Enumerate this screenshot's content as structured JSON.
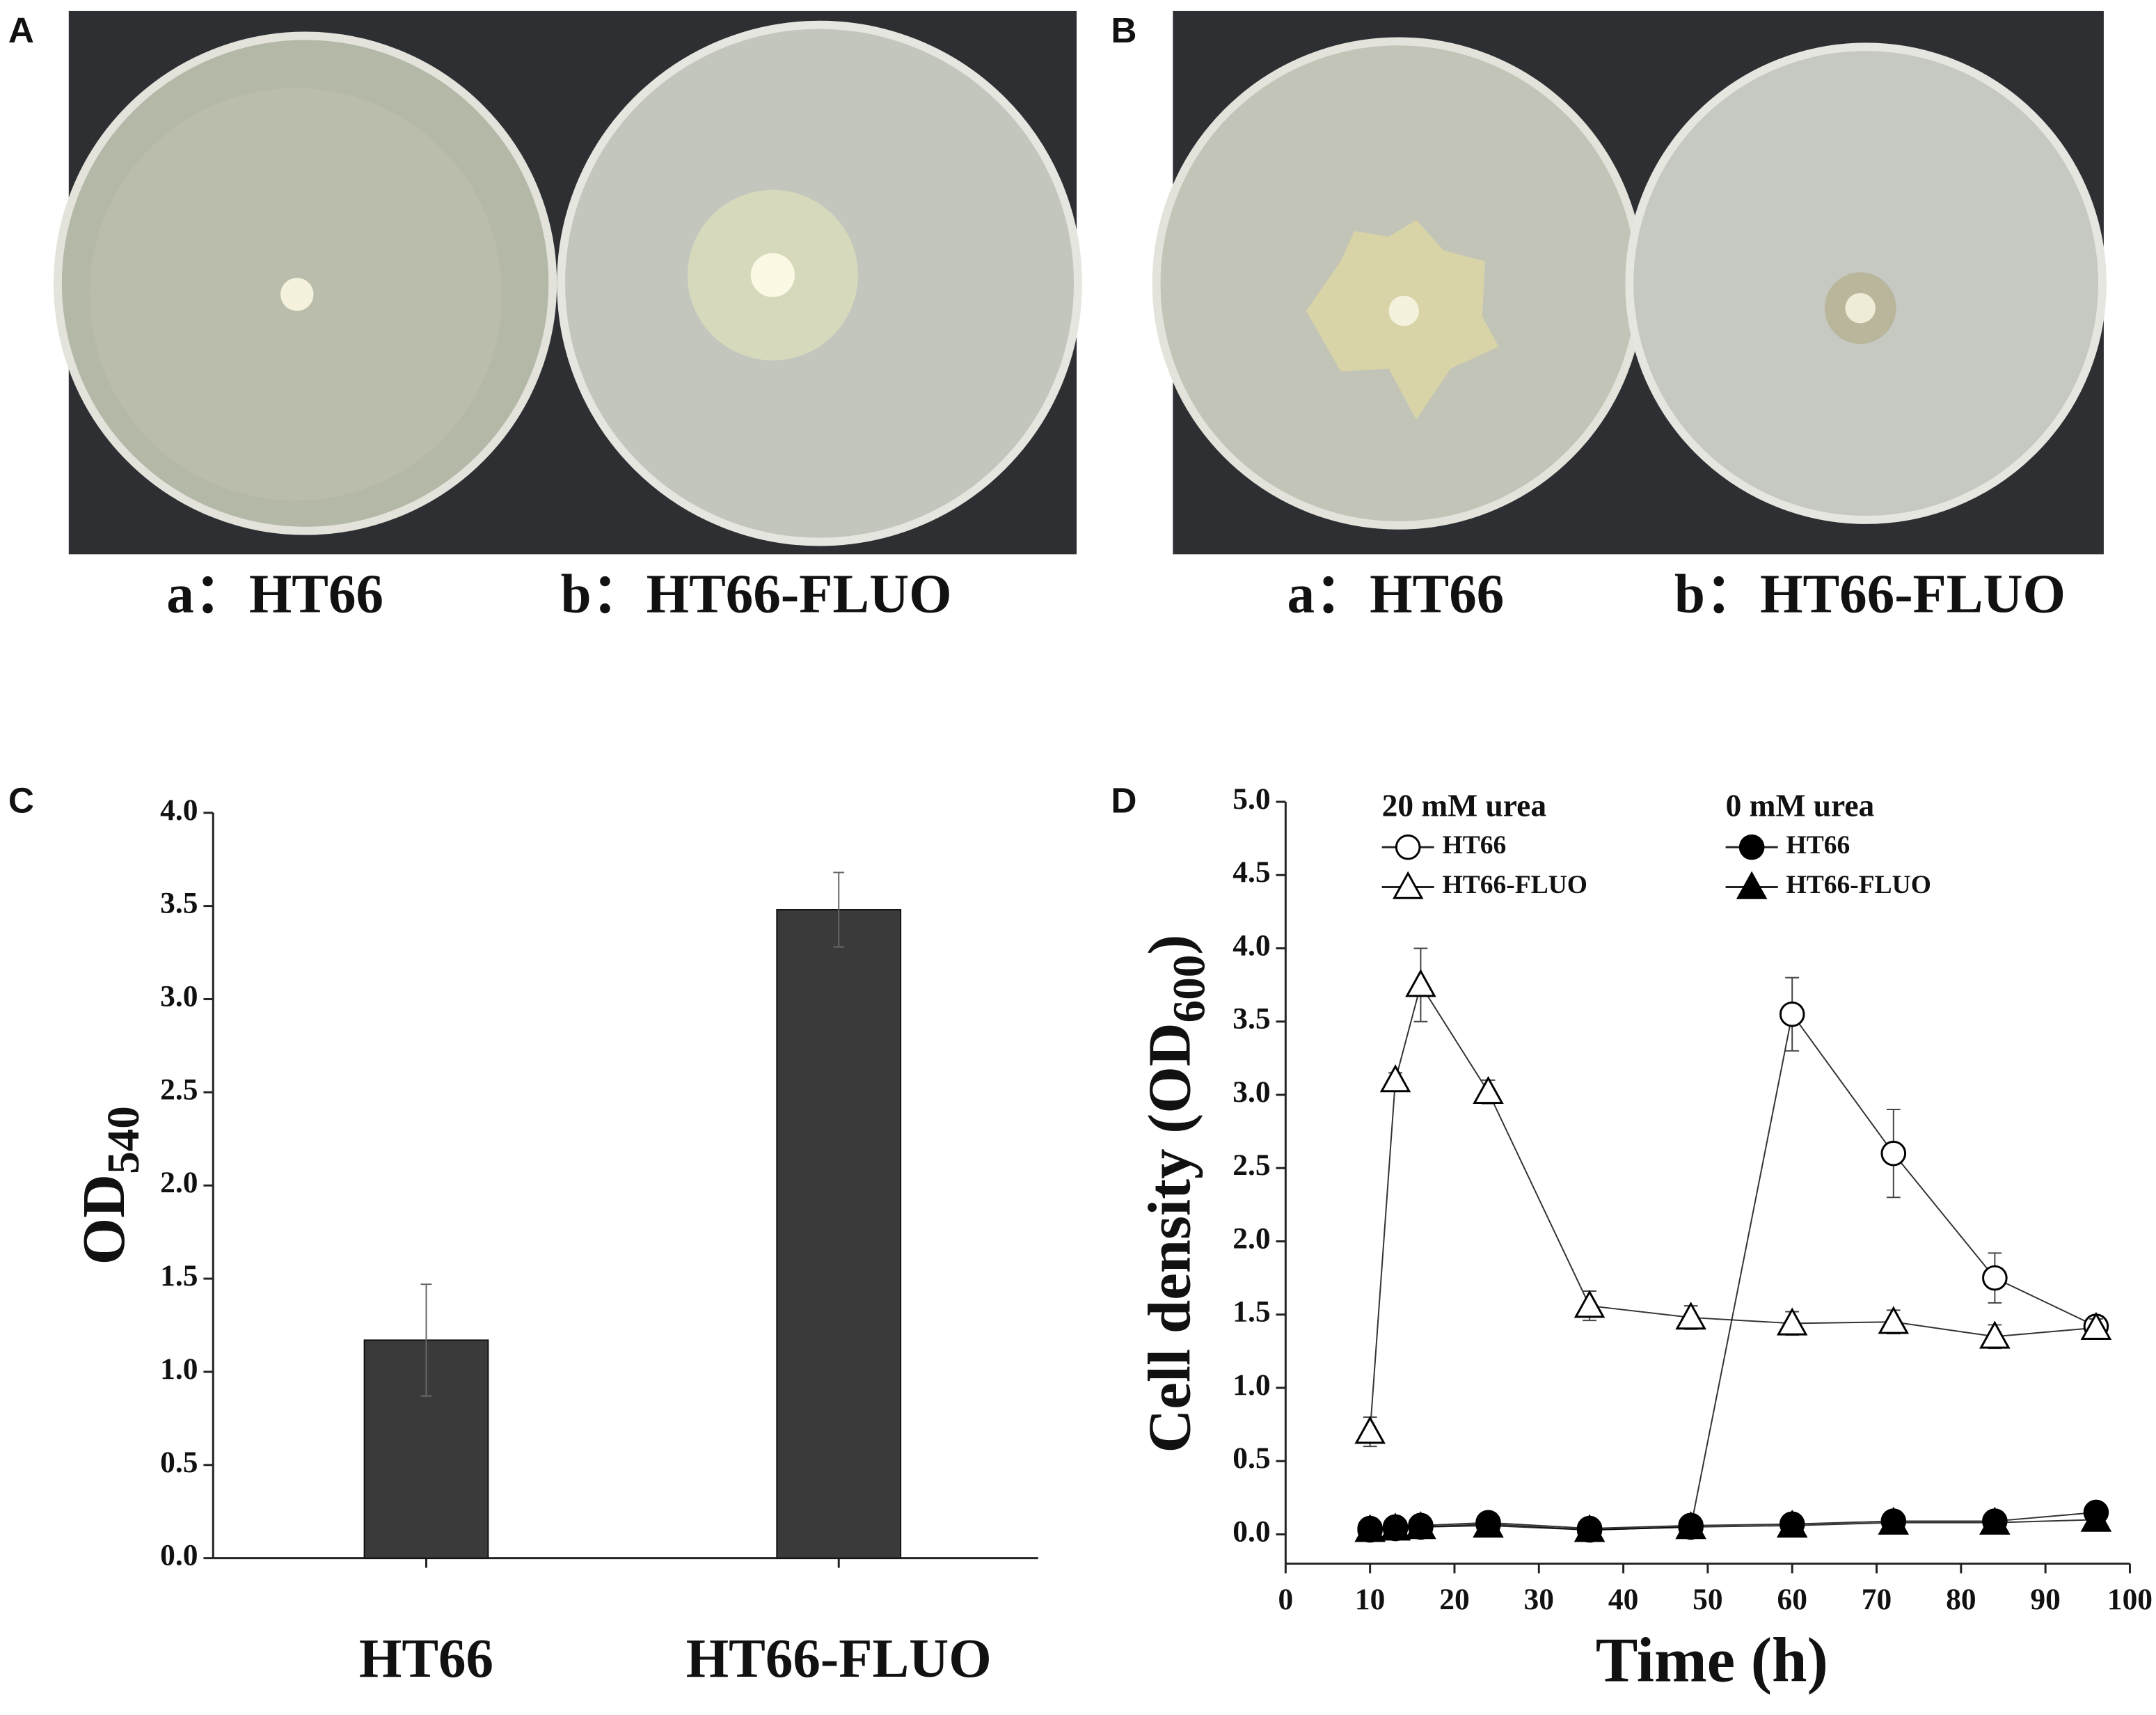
{
  "panel_labels": [
    "A",
    "B",
    "C",
    "D"
  ],
  "photos": [
    {
      "captions": [
        "a：HT66",
        "b：HT66-FLUO"
      ]
    },
    {
      "captions": [
        "a：HT66",
        "b：HT66-FLUO"
      ]
    }
  ],
  "chart_data": [
    {
      "type": "bar",
      "y_label": {
        "text": "OD",
        "subscript": "540"
      },
      "categories": [
        "HT66",
        "HT66-FLUO"
      ],
      "values": [
        1.17,
        3.48
      ],
      "errors": [
        0.3,
        0.2
      ],
      "color": "#3a3a3a",
      "ylim": [
        0,
        4
      ],
      "yticks": [
        {
          "value": 0,
          "label": "0.0"
        },
        {
          "value": 0.5,
          "label": "0.5"
        },
        {
          "value": 1,
          "label": "1.0"
        },
        {
          "value": 1.5,
          "label": "1.5"
        },
        {
          "value": 2,
          "label": "2.0"
        },
        {
          "value": 2.5,
          "label": "2.5"
        },
        {
          "value": 3,
          "label": "3.0"
        },
        {
          "value": 3.5,
          "label": "3.5"
        },
        {
          "value": 4,
          "label": "4.0"
        }
      ]
    },
    {
      "type": "line",
      "x_label": "Time (h)",
      "y_label": {
        "text": "Cell density (OD",
        "subscript": "600",
        "end": ")"
      },
      "legend_titles": [
        "20 mM urea",
        "0 mM urea"
      ],
      "x": [
        10,
        13,
        16,
        24,
        36,
        48,
        60,
        72,
        84,
        96
      ],
      "series": [
        {
          "name": "HT66",
          "marker": "circle-open",
          "color": "#000000",
          "values": [
            0.03,
            0.04,
            0.05,
            0.07,
            0.03,
            0.05,
            3.55,
            2.6,
            1.75,
            1.42
          ],
          "errors": [
            0.02,
            0.02,
            0.02,
            0.02,
            0.02,
            0.03,
            0.25,
            0.3,
            0.17,
            0.05
          ]
        },
        {
          "name": "HT66-FLUO",
          "marker": "triangle-open",
          "color": "#000000",
          "values": [
            0.7,
            3.1,
            3.75,
            3.02,
            1.56,
            1.48,
            1.44,
            1.45,
            1.35,
            1.41
          ],
          "errors": [
            0.1,
            0.05,
            0.25,
            0.08,
            0.1,
            0.08,
            0.08,
            0.08,
            0.08,
            0.06
          ]
        },
        {
          "name": "HT66",
          "marker": "circle-filled",
          "color": "#000000",
          "values": [
            0.04,
            0.05,
            0.06,
            0.08,
            0.04,
            0.06,
            0.07,
            0.09,
            0.09,
            0.15
          ]
        },
        {
          "name": "HT66-FLUO",
          "marker": "triangle-filled",
          "color": "#000000",
          "values": [
            0.03,
            0.04,
            0.05,
            0.06,
            0.03,
            0.05,
            0.06,
            0.08,
            0.08,
            0.1
          ]
        }
      ],
      "xlim": [
        0,
        100
      ],
      "xticks": [
        0,
        10,
        20,
        30,
        40,
        50,
        60,
        70,
        80,
        90,
        100
      ],
      "ylim": [
        -0.2,
        5
      ],
      "yticks": [
        {
          "value": 0,
          "label": "0.0"
        },
        {
          "value": 0.5,
          "label": "0.5"
        },
        {
          "value": 1,
          "label": "1.0"
        },
        {
          "value": 1.5,
          "label": "1.5"
        },
        {
          "value": 2,
          "label": "2.0"
        },
        {
          "value": 2.5,
          "label": "2.5"
        },
        {
          "value": 3,
          "label": "3.0"
        },
        {
          "value": 3.5,
          "label": "3.5"
        },
        {
          "value": 4,
          "label": "4.0"
        },
        {
          "value": 4.5,
          "label": "4.5"
        },
        {
          "value": 5,
          "label": "5.0"
        }
      ]
    }
  ]
}
